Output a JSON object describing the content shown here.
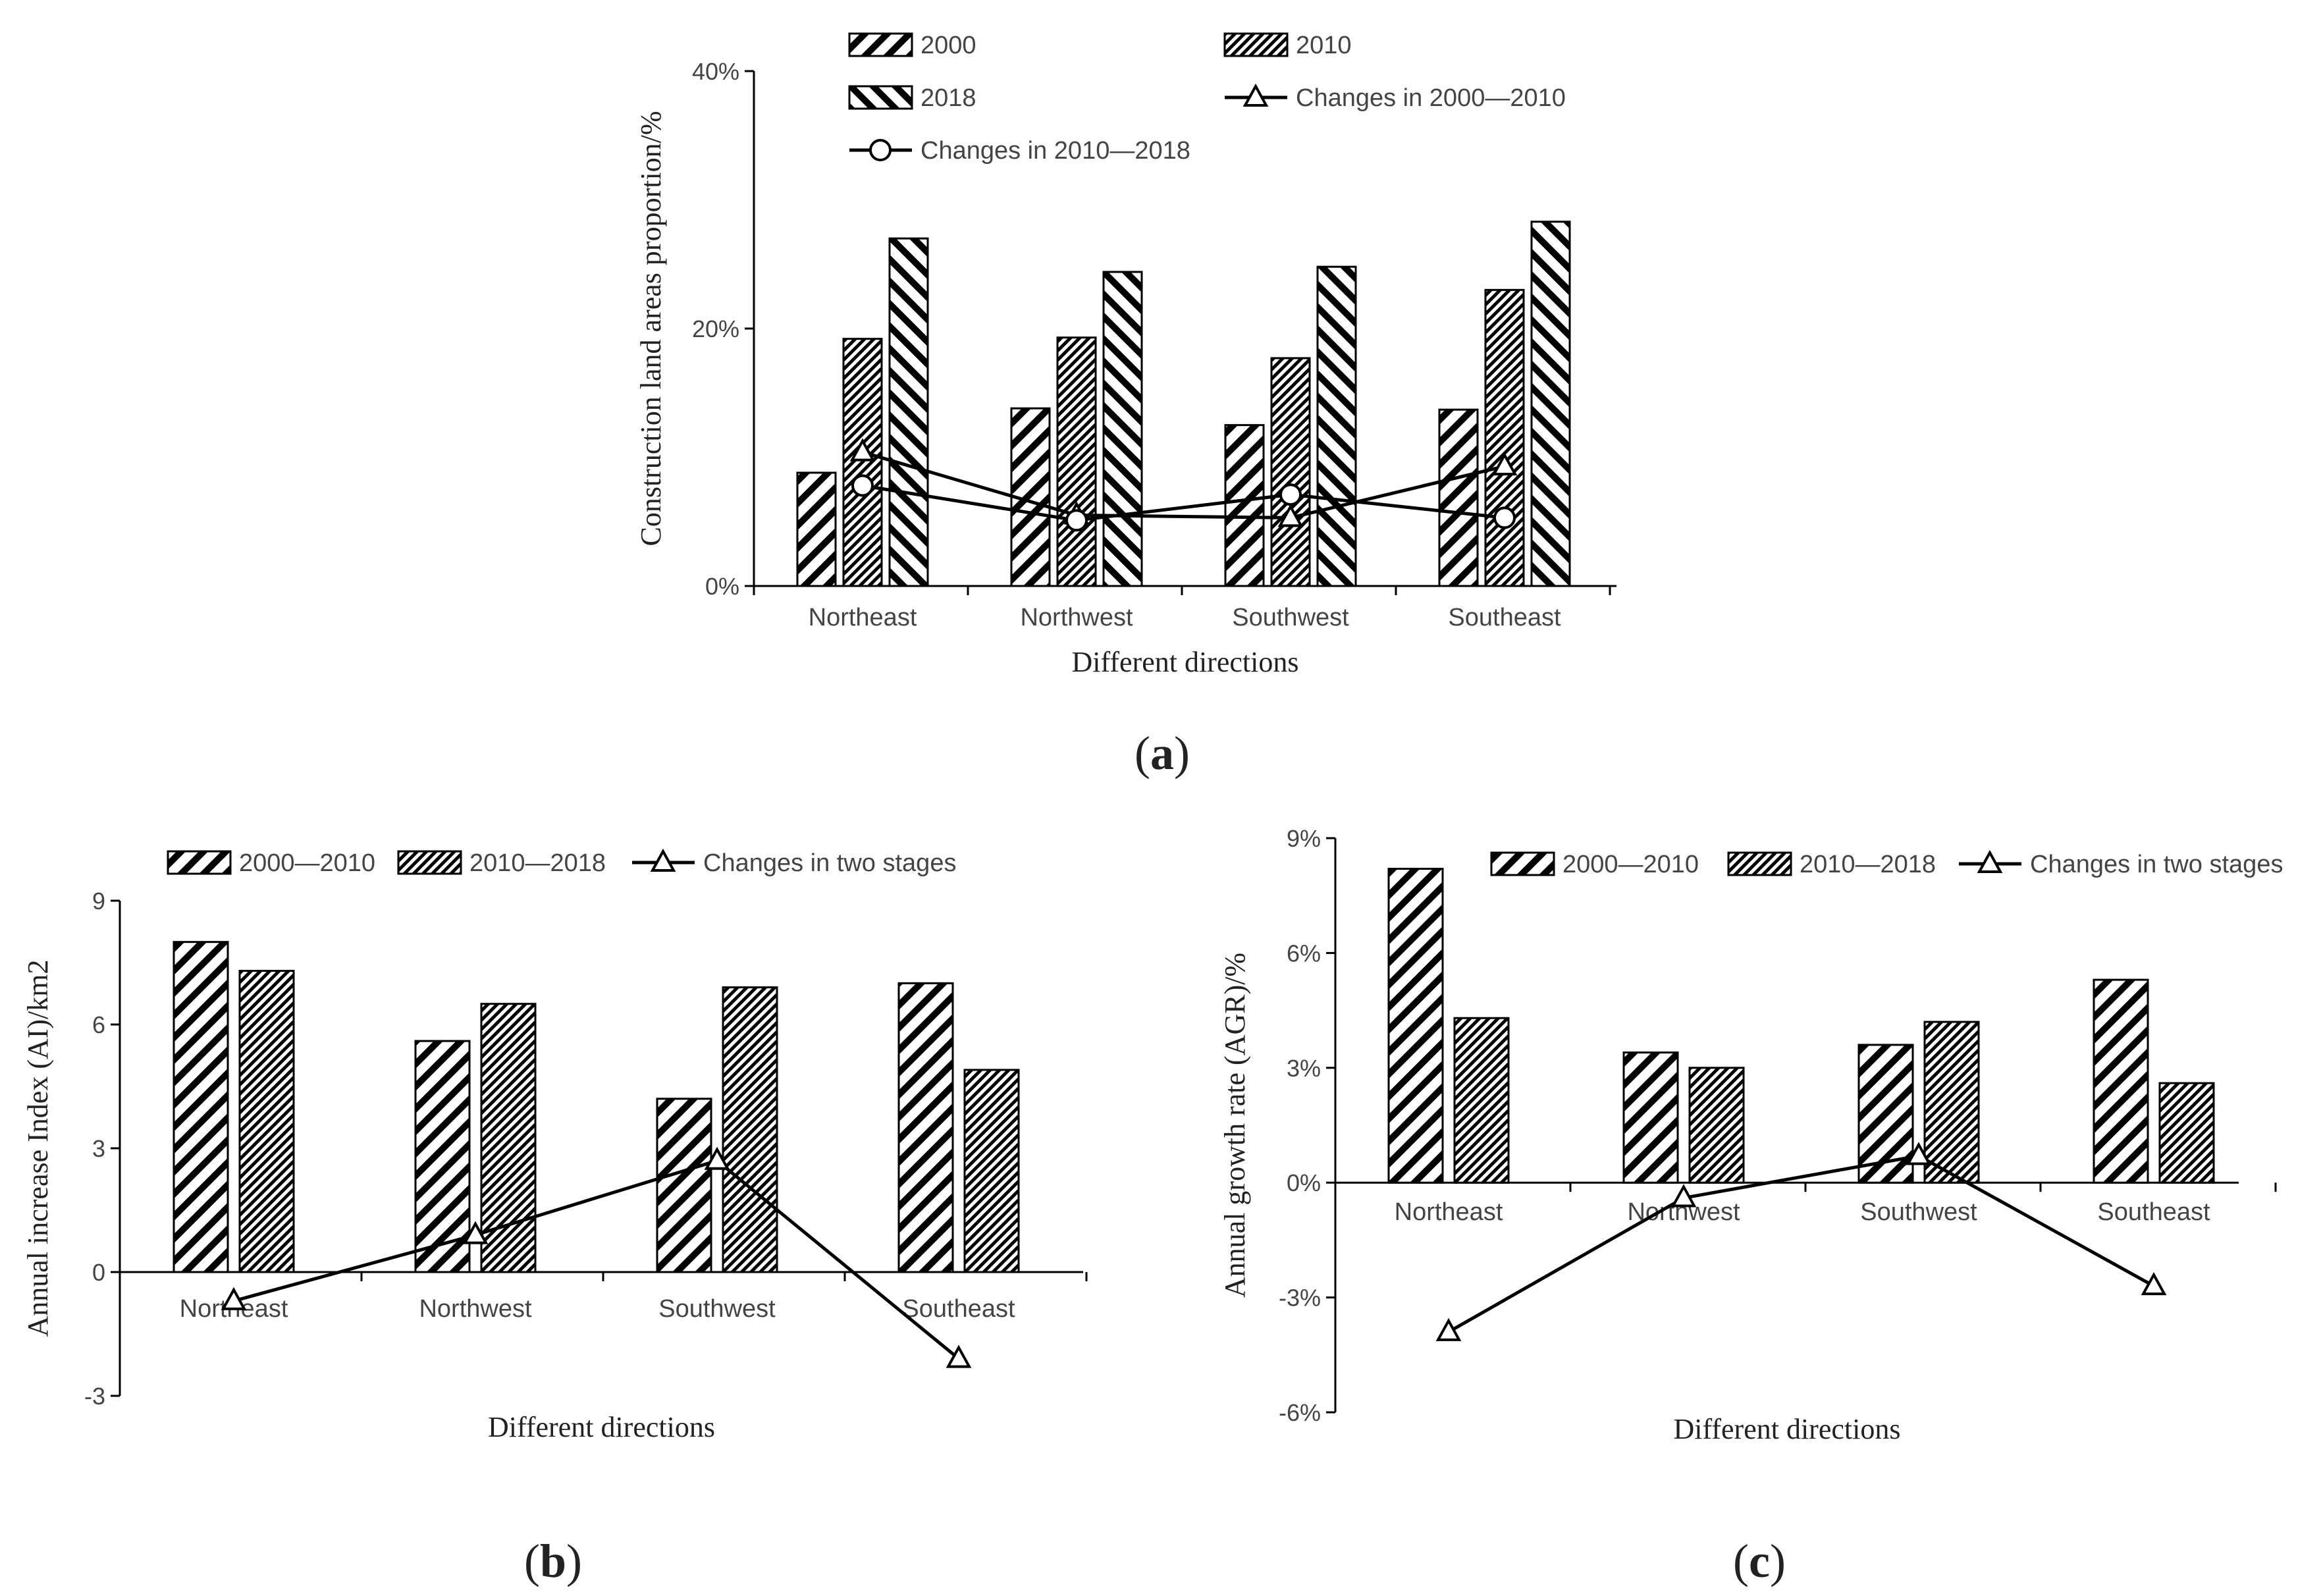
{
  "figure": {
    "panel_labels": {
      "a": {
        "open": "(",
        "letter": "a",
        "close": ")"
      },
      "b": {
        "open": "(",
        "letter": "b",
        "close": ")"
      },
      "c": {
        "open": "(",
        "letter": "c",
        "close": ")"
      }
    }
  },
  "chart_data": [
    {
      "id": "a",
      "type": "bar",
      "ylabel": "Construction land areas proportion/%",
      "xlabel": "Different directions",
      "categories": [
        "Northeast",
        "Northwest",
        "Southwest",
        "Southeast"
      ],
      "ylim": [
        0,
        40
      ],
      "yticks": [
        0,
        20,
        40
      ],
      "ytick_labels": [
        "0%",
        "20%",
        "40%"
      ],
      "series": [
        {
          "name": "2000",
          "kind": "bar",
          "pattern": "wide",
          "values": [
            8.8,
            13.8,
            12.5,
            13.7
          ]
        },
        {
          "name": "2010",
          "kind": "bar",
          "pattern": "dense",
          "values": [
            19.2,
            19.3,
            17.7,
            23.0
          ]
        },
        {
          "name": "2018",
          "kind": "bar",
          "pattern": "back",
          "values": [
            27.0,
            24.4,
            24.8,
            28.3
          ]
        },
        {
          "name": "Changes in 2000—2010",
          "kind": "line",
          "marker": "triangle",
          "values": [
            10.4,
            5.5,
            5.3,
            9.3
          ]
        },
        {
          "name": "Changes in 2010—2018",
          "kind": "line",
          "marker": "circle",
          "values": [
            7.8,
            5.1,
            7.1,
            5.3
          ]
        }
      ],
      "legend": "top"
    },
    {
      "id": "b",
      "type": "bar",
      "ylabel": "Annual increase Index (AI)/km2",
      "xlabel": "Different directions",
      "categories": [
        "Northeast",
        "Northwest",
        "Southwest",
        "Southeast"
      ],
      "ylim": [
        -3,
        9
      ],
      "yticks": [
        -3,
        0,
        3,
        6,
        9
      ],
      "ytick_labels": [
        "-3",
        "0",
        "3",
        "6",
        "9"
      ],
      "series": [
        {
          "name": "2000—2010",
          "kind": "bar",
          "pattern": "wide",
          "values": [
            8.0,
            5.6,
            4.2,
            7.0
          ]
        },
        {
          "name": "2010—2018",
          "kind": "bar",
          "pattern": "dense",
          "values": [
            7.3,
            6.5,
            6.9,
            4.9
          ]
        },
        {
          "name": "Changes in two stages",
          "kind": "line",
          "marker": "triangle",
          "values": [
            -0.7,
            0.9,
            2.7,
            -2.1
          ]
        }
      ],
      "legend": "top"
    },
    {
      "id": "c",
      "type": "bar",
      "ylabel": "Annual growth rate (AGR)/%",
      "xlabel": "Different directions",
      "categories": [
        "Northeast",
        "Northwest",
        "Southwest",
        "Southeast"
      ],
      "ylim": [
        -6,
        9
      ],
      "yticks": [
        -6,
        -3,
        0,
        3,
        6,
        9
      ],
      "ytick_labels": [
        "-6%",
        "-3%",
        "0%",
        "3%",
        "6%",
        "9%"
      ],
      "series": [
        {
          "name": "2000—2010",
          "kind": "bar",
          "pattern": "wide",
          "values": [
            8.2,
            3.4,
            3.6,
            5.3
          ]
        },
        {
          "name": "2010—2018",
          "kind": "bar",
          "pattern": "dense",
          "values": [
            4.3,
            3.0,
            4.2,
            2.6
          ]
        },
        {
          "name": "Changes in two stages",
          "kind": "line",
          "marker": "triangle",
          "values": [
            -3.9,
            -0.4,
            0.7,
            -2.7
          ]
        }
      ],
      "legend": "top-right"
    }
  ]
}
